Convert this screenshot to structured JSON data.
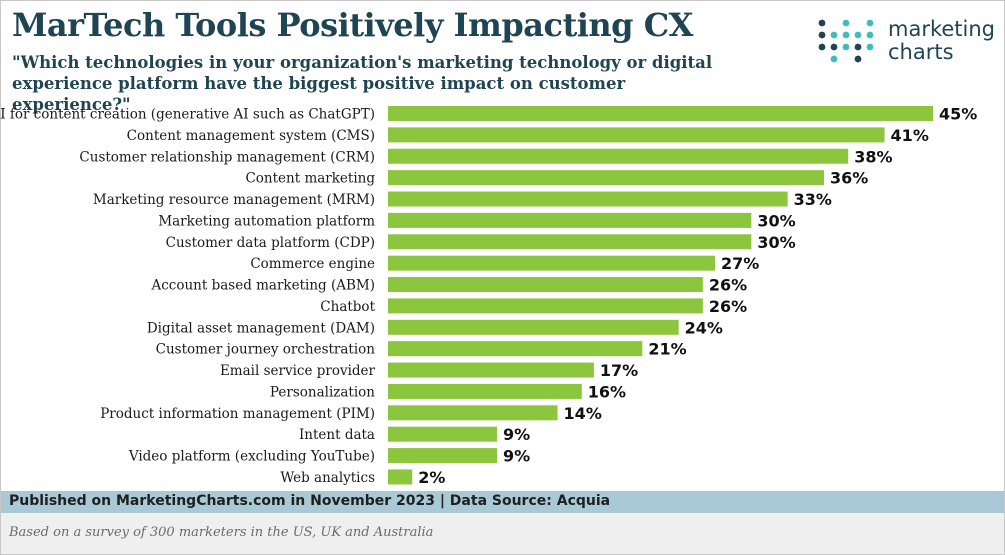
{
  "header": {
    "title": "MarTech Tools Positively Impacting CX",
    "subtitle": "\"Which technologies in your organization's marketing technology or digital experience platform have the biggest positive impact on customer experience?\""
  },
  "logo": {
    "line1": "marketing",
    "line2": "charts",
    "dot_color_dark": "#1f4453",
    "dot_color_teal": "#3fbcc0"
  },
  "footer": {
    "published": "Published on MarketingCharts.com in November 2023 | Data Source: Acquia",
    "note": "Based on a survey of 300 marketers in the US, UK and Australia"
  },
  "colors": {
    "bar": "#8cc63e",
    "title": "#1f4453",
    "footer_band": "#a9c9d6",
    "note_band": "#efefef"
  },
  "chart_data": {
    "type": "bar",
    "orientation": "horizontal",
    "title": "MarTech Tools Positively Impacting CX",
    "xlabel": "",
    "ylabel": "",
    "xlim": [
      0,
      45
    ],
    "grid": false,
    "value_suffix": "%",
    "categories": [
      "AI for content creation (generative AI such as ChatGPT)",
      "Content management system (CMS)",
      "Customer relationship management (CRM)",
      "Content marketing",
      "Marketing resource management (MRM)",
      "Marketing automation platform",
      "Customer data platform (CDP)",
      "Commerce engine",
      "Account based marketing (ABM)",
      "Chatbot",
      "Digital asset management (DAM)",
      "Customer journey orchestration",
      "Email service provider",
      "Personalization",
      "Product information management (PIM)",
      "Intent data",
      "Video platform (excluding YouTube)",
      "Web analytics"
    ],
    "values": [
      45,
      41,
      38,
      36,
      33,
      30,
      30,
      27,
      26,
      26,
      24,
      21,
      17,
      16,
      14,
      9,
      9,
      2
    ]
  }
}
